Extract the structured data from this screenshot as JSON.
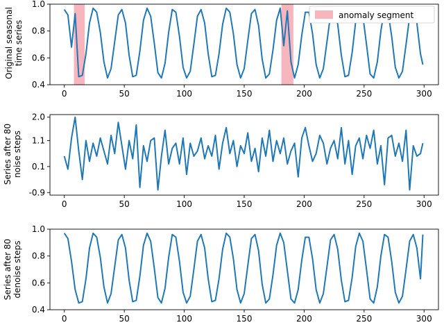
{
  "chart_data": [
    {
      "type": "line",
      "ylabel": [
        "Original seasonal",
        "time series"
      ],
      "xlim": [
        -12,
        312
      ],
      "ylim": [
        0.4,
        1.0
      ],
      "xticks": [
        0,
        50,
        100,
        150,
        200,
        250,
        300
      ],
      "xtick_labels": [
        "0",
        "50",
        "100",
        "150",
        "200",
        "250",
        "300"
      ],
      "yticks": [
        0.4,
        0.6,
        0.8,
        1.0
      ],
      "ytick_labels": [
        "0.4",
        "0.6",
        "0.8",
        "1.0"
      ],
      "color": "#1f77b4",
      "series": [
        {
          "x": [
            0,
            3,
            6,
            9,
            12,
            15,
            18,
            21,
            24,
            27,
            30,
            33,
            36,
            39,
            42,
            45,
            48,
            51,
            54,
            57,
            60,
            63,
            66,
            69,
            72,
            75,
            78,
            81,
            84,
            87,
            90,
            93,
            96,
            99,
            102,
            105,
            108,
            111,
            114,
            117,
            120,
            123,
            126,
            129,
            132,
            135,
            138,
            141,
            144,
            147,
            150,
            153,
            156,
            159,
            162,
            165,
            168,
            171,
            174,
            177,
            180,
            183,
            186,
            189,
            192,
            195,
            198,
            201,
            204,
            207,
            210,
            213,
            216,
            219,
            222,
            225,
            228,
            231,
            234,
            237,
            240,
            243,
            246,
            249,
            252,
            255,
            258,
            261,
            264,
            267,
            270,
            273,
            276,
            279,
            282,
            285,
            288,
            291,
            294,
            297,
            299
          ],
          "y": [
            0.96,
            0.92,
            0.68,
            0.93,
            0.46,
            0.47,
            0.63,
            0.86,
            0.97,
            0.94,
            0.79,
            0.57,
            0.45,
            0.52,
            0.72,
            0.92,
            0.96,
            0.86,
            0.62,
            0.46,
            0.47,
            0.65,
            0.88,
            0.97,
            0.91,
            0.71,
            0.49,
            0.45,
            0.56,
            0.79,
            0.96,
            0.94,
            0.76,
            0.53,
            0.45,
            0.5,
            0.7,
            0.91,
            0.96,
            0.86,
            0.63,
            0.46,
            0.47,
            0.63,
            0.85,
            0.97,
            0.94,
            0.78,
            0.55,
            0.45,
            0.52,
            0.73,
            0.93,
            0.96,
            0.84,
            0.59,
            0.45,
            0.48,
            0.66,
            0.88,
            0.97,
            0.69,
            0.95,
            0.57,
            0.45,
            0.55,
            0.77,
            0.94,
            0.94,
            0.78,
            0.55,
            0.45,
            0.52,
            0.72,
            0.92,
            0.96,
            0.85,
            0.62,
            0.46,
            0.47,
            0.64,
            0.87,
            0.97,
            0.91,
            0.7,
            0.48,
            0.45,
            0.57,
            0.8,
            0.96,
            0.94,
            0.76,
            0.53,
            0.45,
            0.5,
            0.7,
            0.91,
            0.96,
            0.86,
            0.63,
            0.55
          ]
        }
      ],
      "shaded_regions": [
        {
          "x0": 8,
          "x1": 17,
          "color": "#f7b6bd"
        },
        {
          "x0": 181,
          "x1": 191,
          "color": "#f7b6bd"
        }
      ],
      "legend": {
        "placement": "top-right",
        "entries": [
          {
            "label": "anomaly segment",
            "color": "#f7b6bd",
            "kind": "patch"
          }
        ]
      }
    },
    {
      "type": "line",
      "ylabel": [
        "Series after 80",
        "noise steps"
      ],
      "xlim": [
        -12,
        312
      ],
      "ylim": [
        -1.0,
        2.1
      ],
      "xticks": [
        0,
        50,
        100,
        150,
        200,
        250,
        300
      ],
      "xtick_labels": [
        "0",
        "50",
        "100",
        "150",
        "200",
        "250",
        "300"
      ],
      "yticks": [
        -0.9,
        0.1,
        1.1,
        2.0
      ],
      "ytick_labels": [
        "-0.9",
        "0.1",
        "1.1",
        "2.0"
      ],
      "color": "#1f77b4",
      "series": [
        {
          "x": [
            0,
            3,
            6,
            9,
            12,
            15,
            18,
            21,
            24,
            27,
            30,
            33,
            36,
            39,
            42,
            45,
            48,
            51,
            54,
            57,
            60,
            63,
            66,
            69,
            72,
            75,
            78,
            81,
            84,
            87,
            90,
            93,
            96,
            99,
            102,
            105,
            108,
            111,
            114,
            117,
            120,
            123,
            126,
            129,
            132,
            135,
            138,
            141,
            144,
            147,
            150,
            153,
            156,
            159,
            162,
            165,
            168,
            171,
            174,
            177,
            180,
            183,
            186,
            189,
            192,
            195,
            198,
            201,
            204,
            207,
            210,
            213,
            216,
            219,
            222,
            225,
            228,
            231,
            234,
            237,
            240,
            243,
            246,
            249,
            252,
            255,
            258,
            261,
            264,
            267,
            270,
            273,
            276,
            279,
            282,
            285,
            288,
            291,
            294,
            297,
            299
          ],
          "y": [
            0.5,
            0.0,
            1.2,
            2.0,
            0.7,
            -0.4,
            1.1,
            0.3,
            1.0,
            0.5,
            1.2,
            0.7,
            0.2,
            1.3,
            0.6,
            1.8,
            0.9,
            0.0,
            1.1,
            0.4,
            1.7,
            -0.7,
            0.9,
            0.3,
            1.1,
            1.2,
            -0.8,
            0.5,
            1.5,
            0.2,
            0.8,
            1.0,
            0.2,
            1.2,
            -0.2,
            1.0,
            0.5,
            0.7,
            1.2,
            0.4,
            0.9,
            0.5,
            1.3,
            0.0,
            1.0,
            1.6,
            0.6,
            1.1,
            0.1,
            0.9,
            0.6,
            1.4,
            0.3,
            0.8,
            -0.1,
            1.2,
            0.5,
            1.5,
            0.3,
            1.1,
            0.6,
            1.2,
            0.2,
            0.7,
            1.0,
            -0.3,
            1.2,
            1.6,
            0.9,
            0.3,
            0.6,
            1.3,
            1.0,
            0.2,
            0.8,
            1.1,
            0.4,
            1.6,
            0.2,
            1.1,
            -0.2,
            0.9,
            1.2,
            0.4,
            1.3,
            0.8,
            1.5,
            0.2,
            0.9,
            -0.6,
            1.2,
            1.3,
            0.5,
            1.0,
            0.3,
            1.5,
            -0.8,
            0.9,
            0.5,
            0.6,
            1.0
          ]
        }
      ]
    },
    {
      "type": "line",
      "ylabel": [
        "Series after 80",
        "denoise steps"
      ],
      "xlim": [
        -12,
        312
      ],
      "ylim": [
        0.4,
        1.0
      ],
      "xticks": [
        0,
        50,
        100,
        150,
        200,
        250,
        300
      ],
      "xtick_labels": [
        "0",
        "50",
        "100",
        "150",
        "200",
        "250",
        "300"
      ],
      "yticks": [
        0.4,
        0.6,
        0.8,
        1.0
      ],
      "ytick_labels": [
        "0.4",
        "0.6",
        "0.8",
        "1.0"
      ],
      "color": "#1f77b4",
      "series": [
        {
          "x": [
            0,
            3,
            6,
            9,
            12,
            15,
            18,
            21,
            24,
            27,
            30,
            33,
            36,
            39,
            42,
            45,
            48,
            51,
            54,
            57,
            60,
            63,
            66,
            69,
            72,
            75,
            78,
            81,
            84,
            87,
            90,
            93,
            96,
            99,
            102,
            105,
            108,
            111,
            114,
            117,
            120,
            123,
            126,
            129,
            132,
            135,
            138,
            141,
            144,
            147,
            150,
            153,
            156,
            159,
            162,
            165,
            168,
            171,
            174,
            177,
            180,
            183,
            186,
            189,
            192,
            195,
            198,
            201,
            204,
            207,
            210,
            213,
            216,
            219,
            222,
            225,
            228,
            231,
            234,
            237,
            240,
            243,
            246,
            249,
            252,
            255,
            258,
            261,
            264,
            267,
            270,
            273,
            276,
            279,
            282,
            285,
            288,
            291,
            294,
            297,
            299
          ],
          "y": [
            0.97,
            0.93,
            0.76,
            0.55,
            0.45,
            0.46,
            0.63,
            0.86,
            0.97,
            0.94,
            0.79,
            0.57,
            0.45,
            0.52,
            0.72,
            0.92,
            0.96,
            0.86,
            0.62,
            0.46,
            0.47,
            0.65,
            0.88,
            0.97,
            0.91,
            0.71,
            0.49,
            0.45,
            0.56,
            0.79,
            0.96,
            0.94,
            0.76,
            0.53,
            0.45,
            0.5,
            0.7,
            0.91,
            0.96,
            0.86,
            0.63,
            0.46,
            0.47,
            0.63,
            0.85,
            0.97,
            0.94,
            0.78,
            0.55,
            0.45,
            0.52,
            0.73,
            0.93,
            0.96,
            0.84,
            0.59,
            0.45,
            0.48,
            0.66,
            0.88,
            0.97,
            0.9,
            0.69,
            0.48,
            0.45,
            0.55,
            0.77,
            0.94,
            0.94,
            0.78,
            0.55,
            0.45,
            0.52,
            0.72,
            0.92,
            0.96,
            0.85,
            0.62,
            0.46,
            0.47,
            0.64,
            0.87,
            0.97,
            0.91,
            0.7,
            0.48,
            0.45,
            0.57,
            0.8,
            0.96,
            0.94,
            0.76,
            0.53,
            0.45,
            0.5,
            0.7,
            0.91,
            0.96,
            0.86,
            0.63,
            0.96
          ]
        }
      ]
    }
  ]
}
